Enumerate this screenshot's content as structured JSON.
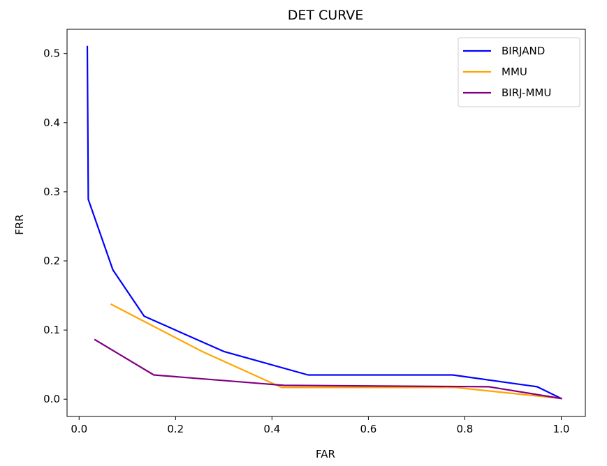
{
  "chart_data": {
    "type": "line",
    "title": "DET CURVE",
    "xlabel": "FAR",
    "ylabel": "FRR",
    "xlim": [
      -0.025,
      1.05
    ],
    "ylim": [
      -0.025,
      0.535
    ],
    "xticks": [
      0.0,
      0.2,
      0.4,
      0.6,
      0.8,
      1.0
    ],
    "xtick_labels": [
      "0.0",
      "0.2",
      "0.4",
      "0.6",
      "0.8",
      "1.0"
    ],
    "yticks": [
      0.0,
      0.1,
      0.2,
      0.3,
      0.4,
      0.5
    ],
    "ytick_labels": [
      "0.0",
      "0.1",
      "0.2",
      "0.3",
      "0.4",
      "0.5"
    ],
    "grid": false,
    "legend_position": "top-right",
    "series": [
      {
        "name": "BIRJAND",
        "color": "#0000ff",
        "x": [
          0.017,
          0.019,
          0.07,
          0.135,
          0.3,
          0.475,
          0.775,
          0.95,
          1.0
        ],
        "y": [
          0.51,
          0.289,
          0.187,
          0.12,
          0.069,
          0.035,
          0.035,
          0.018,
          0.001
        ]
      },
      {
        "name": "MMU",
        "color": "#ffa500",
        "x": [
          0.067,
          0.255,
          0.42,
          0.78,
          1.0
        ],
        "y": [
          0.137,
          0.069,
          0.017,
          0.017,
          0.001
        ]
      },
      {
        "name": "BIRJ-MMU",
        "color": "#800080",
        "x": [
          0.033,
          0.155,
          0.425,
          0.85,
          1.0
        ],
        "y": [
          0.086,
          0.035,
          0.02,
          0.018,
          0.001
        ]
      }
    ]
  }
}
